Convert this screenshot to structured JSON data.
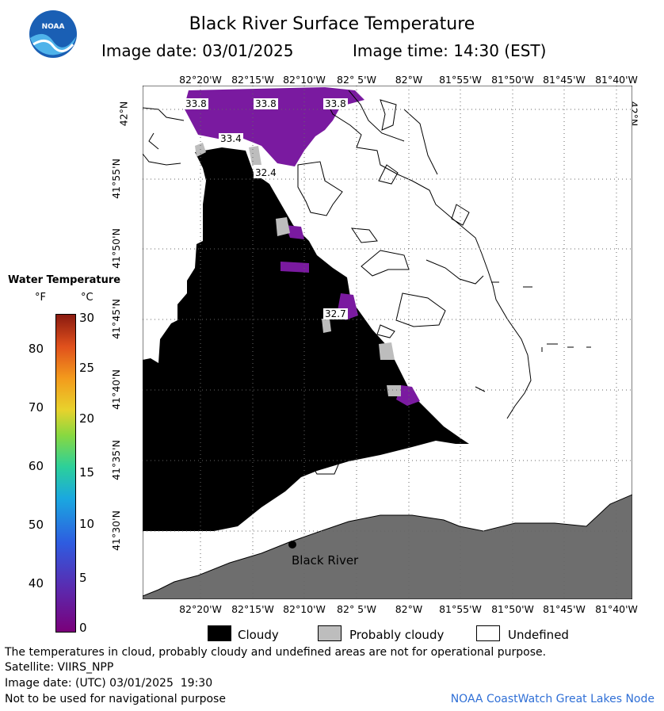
{
  "header": {
    "title": "Black River Surface Temperature",
    "image_date_label": "Image date: 03/01/2025",
    "image_time_label": "Image time: 14:30 (EST)"
  },
  "logo": {
    "text": "NOAA",
    "colors": {
      "blue": "#1a5fb4",
      "sky": "#4fb3ea"
    }
  },
  "axes": {
    "lon_ticks": [
      "82°20'W",
      "82°15'W",
      "82°10'W",
      "82° 5'W",
      "82°W",
      "81°55'W",
      "81°50'W",
      "81°45'W",
      "81°40'W"
    ],
    "lat_ticks": [
      "42°N",
      "41°55'N",
      "41°50'N",
      "41°45'N",
      "41°40'N",
      "41°35'N",
      "41°30'N"
    ]
  },
  "map": {
    "place_label": "Black River",
    "temperature_labels": [
      "33.8",
      "33.8",
      "33.8",
      "33.4",
      "32.4",
      "32.7"
    ],
    "colors": {
      "cloud": "#000000",
      "probably_cloudy": "#bdbdbd",
      "land": "#6e6e6e",
      "water_cold": "#7a1aa0",
      "undefined": "#ffffff"
    }
  },
  "legend": {
    "title": "Water Temperature",
    "unit_f": "°F",
    "unit_c": "°C",
    "f_ticks": [
      "80",
      "70",
      "60",
      "50",
      "40"
    ],
    "c_ticks": [
      "30",
      "25",
      "20",
      "15",
      "10",
      "5",
      "0"
    ]
  },
  "key": {
    "cloudy": "Cloudy",
    "probably_cloudy": "Probably cloudy",
    "undefined": "Undefined"
  },
  "footer": {
    "disclaimer": "The temperatures in cloud, probably cloudy and undefined areas are not for operational purpose.",
    "satellite": "Satellite: VIIRS_NPP",
    "utc_date": "Image date: (UTC) 03/01/2025  19:30",
    "navigation": "Not to be used for navigational purpose",
    "credit": "NOAA CoastWatch Great Lakes Node"
  }
}
